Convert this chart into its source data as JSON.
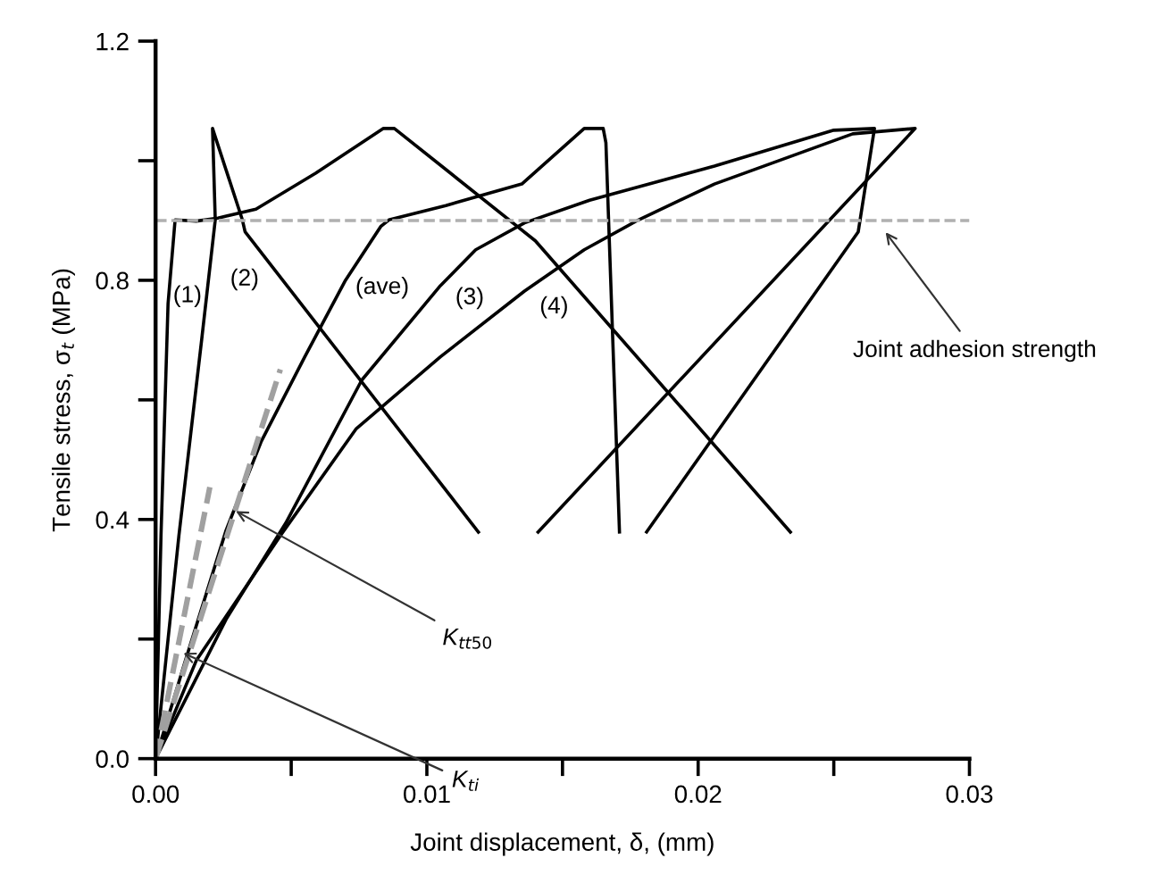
{
  "chart_data": {
    "type": "line",
    "xlabel": "Joint displacement, δ, (mm)",
    "ylabel": "Tensile stress, σ$_{t}$ (MPa)",
    "xlim": [
      0,
      0.03
    ],
    "ylim": [
      0,
      1.2
    ],
    "xticks": [
      {
        "value": 0,
        "label": "0.00"
      },
      {
        "value": 0.005,
        "label": null
      },
      {
        "value": 0.01,
        "label": "0.01"
      },
      {
        "value": 0.015,
        "label": null
      },
      {
        "value": 0.02,
        "label": "0.02"
      },
      {
        "value": 0.025,
        "label": null
      },
      {
        "value": 0.03,
        "label": "0.03"
      }
    ],
    "yticks": [
      {
        "value": 0,
        "label": "0.0"
      },
      {
        "value": 0.2,
        "label": null
      },
      {
        "value": 0.4,
        "label": "0.4"
      },
      {
        "value": 0.6,
        "label": null
      },
      {
        "value": 0.8,
        "label": "0.8"
      },
      {
        "value": 1.0,
        "label": null
      },
      {
        "value": 1.2,
        "label": "1.2"
      }
    ],
    "grid": false,
    "marker": "none",
    "series": [
      {
        "name": "(1)",
        "color": "#000000",
        "line_style": "solid",
        "x": [
          0,
          0.0002,
          0.00046,
          0.00072,
          0.0015,
          0.0023,
          0.0037,
          0.0059,
          0.0084,
          0.0088,
          0.014,
          0.0234
        ],
        "values": [
          0,
          0.373,
          0.761,
          0.901,
          0.899,
          0.904,
          0.919,
          0.979,
          1.054,
          1.054,
          0.866,
          0.379
        ]
      },
      {
        "name": "(2)",
        "color": "#000000",
        "line_style": "solid",
        "x": [
          0,
          0.00086,
          0.0017,
          0.0022,
          0.0021,
          0.0032,
          0.0033,
          0.0119
        ],
        "values": [
          0,
          0.373,
          0.701,
          0.901,
          1.054,
          0.901,
          0.881,
          0.379
        ]
      },
      {
        "name": "(ave)",
        "color": "#000000",
        "line_style": "solid",
        "x": [
          0,
          0.0011,
          0.0026,
          0.0039,
          0.0055,
          0.007,
          0.0083,
          0.0086,
          0.0107,
          0.0135,
          0.0158,
          0.0165,
          0.0166,
          0.0171
        ],
        "values": [
          0,
          0.164,
          0.382,
          0.531,
          0.672,
          0.8,
          0.89,
          0.901,
          0.925,
          0.961,
          1.054,
          1.054,
          1.03,
          0.379
        ]
      },
      {
        "name": "(3)",
        "color": "#000000",
        "line_style": "solid",
        "x": [
          0,
          0.0026,
          0.0048,
          0.0076,
          0.0105,
          0.0118,
          0.0136,
          0.016,
          0.0206,
          0.025,
          0.0265,
          0.0259,
          0.0181
        ],
        "values": [
          0,
          0.233,
          0.394,
          0.633,
          0.791,
          0.851,
          0.896,
          0.934,
          0.991,
          1.051,
          1.054,
          0.881,
          0.379
        ]
      },
      {
        "name": "(4)",
        "color": "#000000",
        "line_style": "solid",
        "x": [
          0,
          0.0015,
          0.0046,
          0.0074,
          0.0105,
          0.0136,
          0.0158,
          0.0178,
          0.0206,
          0.0257,
          0.028,
          0.0141
        ],
        "values": [
          0,
          0.164,
          0.373,
          0.552,
          0.672,
          0.782,
          0.851,
          0.901,
          0.961,
          1.045,
          1.054,
          0.379
        ]
      },
      {
        "color": "#a0a0a0",
        "line_style": "dashed",
        "x": [
          0,
          0.0046
        ],
        "values": [
          0,
          0.651
        ]
      },
      {
        "color": "#a0a0a0",
        "line_style": "dashed",
        "x": [
          0,
          0.002
        ],
        "values": [
          0,
          0.454
        ]
      }
    ],
    "ref_lines": [
      {
        "axis": "y",
        "value": 0.9,
        "color": "#b0b0b0",
        "line_style": "dashed"
      }
    ],
    "annotations": [
      {
        "text": "K$_{tt50}$",
        "x": 0.0028,
        "y": 0.418
      },
      {
        "text": "K$_{ti}$",
        "x": 0.00086,
        "y": 0.18
      },
      {
        "text": "Joint adhesion strength",
        "x": 0.0268,
        "y": 0.887
      }
    ]
  }
}
